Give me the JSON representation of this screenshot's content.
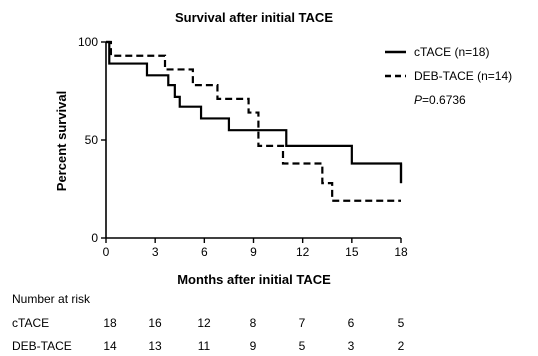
{
  "chart_data": {
    "type": "line",
    "title": "Survival after initial TACE",
    "xlabel": "Months after initial TACE",
    "ylabel": "Percent survival",
    "xlim": [
      0,
      18
    ],
    "ylim": [
      0,
      100
    ],
    "x_ticks": [
      "0",
      "3",
      "6",
      "9",
      "12",
      "15",
      "18"
    ],
    "y_ticks": [
      "0",
      "50",
      "100"
    ],
    "legend_position": "top-right",
    "series": [
      {
        "name": "cTACE (n=18)",
        "style": "solid",
        "color": "#000000",
        "steps": [
          [
            0,
            100
          ],
          [
            0.2,
            89
          ],
          [
            2.5,
            83
          ],
          [
            3.8,
            78
          ],
          [
            4.2,
            72
          ],
          [
            4.5,
            67
          ],
          [
            5.8,
            61
          ],
          [
            7.5,
            55
          ],
          [
            9.2,
            55
          ],
          [
            11,
            47
          ],
          [
            15,
            38
          ],
          [
            18,
            28
          ]
        ]
      },
      {
        "name": "DEB-TACE (n=14)",
        "style": "dashed",
        "color": "#000000",
        "steps": [
          [
            0,
            100
          ],
          [
            0.3,
            93
          ],
          [
            3.6,
            86
          ],
          [
            5.3,
            78
          ],
          [
            6.8,
            71
          ],
          [
            8.7,
            64
          ],
          [
            9.3,
            47
          ],
          [
            10.8,
            38
          ],
          [
            13.2,
            28
          ],
          [
            13.8,
            19
          ],
          [
            18,
            19
          ]
        ]
      }
    ],
    "annotation": {
      "prefix": "P",
      "value": "=0.6736"
    },
    "risk_table": {
      "title": "Number at risk",
      "rows": [
        {
          "label": "cTACE",
          "values": [
            "18",
            "16",
            "12",
            "8",
            "7",
            "6",
            "5"
          ]
        },
        {
          "label": "DEB-TACE",
          "values": [
            "14",
            "13",
            "11",
            "9",
            "5",
            "3",
            "2"
          ]
        }
      ]
    }
  }
}
